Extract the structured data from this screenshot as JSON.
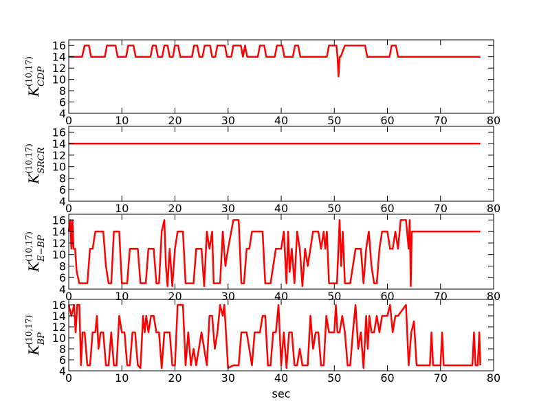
{
  "chart_data": [
    {
      "type": "line",
      "color": "#ff0000",
      "ylabel": {
        "base": "K",
        "sup": "(10,17)",
        "sub": "CDP"
      },
      "xlim": [
        0,
        80
      ],
      "ylim": [
        4,
        17
      ],
      "xticks": [
        0,
        10,
        20,
        30,
        40,
        50,
        60,
        70,
        80
      ],
      "yticks": [
        4,
        6,
        8,
        10,
        12,
        14,
        16
      ],
      "x": [
        0,
        2.5,
        3,
        3.8,
        4.2,
        6.8,
        7.2,
        8.8,
        9.2,
        10.8,
        11.2,
        12.2,
        12.6,
        15.4,
        15.8,
        16.4,
        16.8,
        17.6,
        18,
        18.6,
        19,
        19.6,
        20,
        20.6,
        21,
        23.2,
        23.6,
        24.2,
        24.6,
        25.2,
        25.6,
        26.6,
        27,
        27.6,
        28,
        29.4,
        29.8,
        30.6,
        31,
        32.4,
        32.8,
        33.2,
        33.6,
        35.6,
        36,
        36.8,
        37.2,
        38.8,
        39.2,
        40.2,
        40.6,
        42.2,
        42.6,
        43.2,
        43.6,
        48.6,
        49,
        50.4,
        50.6,
        50.8,
        51,
        51.2,
        52,
        52.4,
        55.8,
        56.2,
        60.4,
        60.8,
        61.6,
        62,
        77.5
      ],
      "values": [
        14,
        14,
        16,
        16,
        14,
        14,
        16,
        16,
        14,
        14,
        16,
        16,
        14,
        14,
        16,
        16,
        14,
        14,
        16,
        16,
        14,
        14,
        16,
        16,
        14,
        14,
        16,
        16,
        14,
        14,
        16,
        16,
        14,
        14,
        16,
        16,
        14,
        14,
        16,
        16,
        14,
        16,
        14,
        14,
        16,
        16,
        14,
        14,
        16,
        16,
        14,
        14,
        16,
        16,
        14,
        14,
        16,
        16,
        14,
        10.5,
        14,
        14,
        16,
        16,
        16,
        14,
        14,
        16,
        16,
        14,
        14
      ]
    },
    {
      "type": "line",
      "color": "#ff0000",
      "ylabel": {
        "base": "K",
        "sup": "(10,17)",
        "sub": "SRCR"
      },
      "xlim": [
        0,
        80
      ],
      "ylim": [
        4,
        17
      ],
      "xticks": [
        0,
        10,
        20,
        30,
        40,
        50,
        60,
        70,
        80
      ],
      "yticks": [
        4,
        6,
        8,
        10,
        12,
        14,
        16
      ],
      "x": [
        0,
        77.5
      ],
      "values": [
        14,
        14
      ]
    },
    {
      "type": "line",
      "color": "#ff0000",
      "ylabel": {
        "base": "K",
        "sup": "(10,17)",
        "sub": "E−BP"
      },
      "xlim": [
        0,
        80
      ],
      "ylim": [
        4,
        17
      ],
      "xticks": [
        0,
        10,
        20,
        30,
        40,
        50,
        60,
        70,
        80
      ],
      "yticks": [
        4,
        6,
        8,
        10,
        12,
        14,
        16
      ],
      "x": [
        0,
        0.3,
        0.5,
        0.7,
        0.9,
        1.2,
        1.5,
        2,
        3.5,
        4,
        4.5,
        5,
        6.5,
        7,
        7.5,
        8,
        8.5,
        9.5,
        10,
        11,
        11.5,
        13,
        13.5,
        14.5,
        15,
        16,
        16.5,
        17,
        17.5,
        18,
        18.3,
        18.6,
        19,
        19.5,
        20,
        20.5,
        21.5,
        22,
        23.5,
        24,
        25,
        25.5,
        26,
        26.5,
        27,
        27.3,
        28.5,
        29,
        29.5,
        30,
        31,
        32,
        32.5,
        33,
        33.5,
        34,
        34.5,
        36.5,
        37,
        38,
        38.5,
        39,
        40,
        40.5,
        41,
        41.3,
        41.6,
        42,
        42.5,
        43,
        43.5,
        44,
        44.5,
        45,
        45.5,
        46,
        47,
        47.5,
        48,
        48.3,
        48.6,
        49,
        50,
        50.5,
        51,
        51.3,
        51.6,
        52,
        53,
        54,
        55,
        55.5,
        56,
        56.5,
        57,
        57.5,
        58,
        58.5,
        59,
        60,
        60.5,
        61,
        61.5,
        62,
        62.5,
        63.5,
        64,
        64.2,
        64.4,
        64.6,
        77.5
      ],
      "values": [
        14,
        16,
        11,
        16,
        11,
        11,
        7,
        5,
        5,
        11,
        11,
        14,
        14,
        8,
        5,
        5,
        14,
        14,
        5,
        5,
        11,
        11,
        5,
        5,
        11,
        11,
        5,
        5,
        14,
        16,
        8,
        4.5,
        11,
        4.5,
        11,
        14,
        14,
        5,
        5,
        11,
        11,
        4.5,
        14,
        11,
        14,
        5,
        5,
        14,
        8,
        11,
        16,
        16,
        5,
        5,
        11,
        11,
        14,
        14,
        5,
        5,
        8,
        11,
        11,
        14,
        5,
        14,
        7,
        11,
        5,
        14,
        11,
        4.5,
        11,
        8,
        11,
        14,
        14,
        11,
        14,
        11,
        14,
        5,
        5,
        5,
        16,
        8,
        14,
        5,
        5,
        11,
        11,
        5,
        11,
        14,
        8,
        5,
        5,
        11,
        14,
        14,
        11,
        11,
        14,
        11,
        16,
        16,
        11,
        16,
        4.5,
        14,
        14
      ]
    },
    {
      "type": "line",
      "color": "#ff0000",
      "ylabel": {
        "base": "K",
        "sup": "(10,17)",
        "sub": "BP"
      },
      "xlabel": "sec",
      "xlim": [
        0,
        80
      ],
      "ylim": [
        4,
        17
      ],
      "xticks": [
        0,
        10,
        20,
        30,
        40,
        50,
        60,
        70,
        80
      ],
      "yticks": [
        4,
        6,
        8,
        10,
        12,
        14,
        16
      ],
      "x": [
        0,
        0.5,
        1,
        1.3,
        1.6,
        2,
        2.3,
        2.6,
        3,
        3.5,
        4,
        4.5,
        5,
        5.3,
        5.6,
        6,
        6.5,
        7,
        7.5,
        8,
        8.5,
        9,
        9.5,
        10,
        10.5,
        11,
        11.5,
        12,
        12.5,
        13,
        13.5,
        14,
        14.3,
        14.6,
        15,
        15.5,
        16,
        16.5,
        17,
        17.5,
        18,
        19,
        19.5,
        20,
        20.5,
        21.5,
        22,
        22.5,
        23,
        23.5,
        24,
        25,
        25.5,
        26,
        26.5,
        27,
        27.5,
        28,
        28.5,
        29,
        29.3,
        29.6,
        30,
        31,
        32,
        32.5,
        33.5,
        34,
        34.5,
        35,
        36,
        36.5,
        37,
        37.5,
        38,
        38.5,
        39,
        39.5,
        40,
        40.5,
        41,
        41.5,
        42,
        42.5,
        43,
        43.5,
        44,
        45,
        45.5,
        46,
        46.5,
        47,
        47.5,
        48,
        48.5,
        49,
        50,
        50.3,
        50.6,
        51,
        51.5,
        52,
        52.5,
        53,
        53.5,
        54,
        54.5,
        55,
        55.5,
        56,
        56.3,
        56.6,
        57,
        57.5,
        58,
        58.5,
        59,
        60,
        60.5,
        61,
        61.5,
        62,
        63.5,
        64,
        64.5,
        65,
        65.5,
        68,
        68.3,
        68.6,
        70,
        70.3,
        70.6,
        76,
        76.3,
        76.6,
        77,
        77.3,
        77.5
      ],
      "values": [
        16,
        14,
        16,
        11,
        16,
        16,
        5,
        11,
        11,
        5,
        5,
        11,
        11,
        14,
        8,
        11,
        11,
        5,
        5,
        11,
        5,
        5,
        14,
        11,
        11,
        5,
        5,
        11,
        11,
        5,
        4.5,
        14,
        11,
        14,
        11,
        14,
        14,
        11,
        11,
        4.5,
        11,
        11,
        5,
        5,
        16,
        16,
        5,
        11,
        5,
        8,
        5,
        11,
        8,
        5,
        14,
        14,
        8,
        11,
        16,
        14,
        16,
        11,
        4.5,
        5,
        5,
        11,
        11,
        8,
        5,
        11,
        11,
        14,
        14,
        5,
        5,
        11,
        11,
        16,
        5,
        11,
        4.5,
        11,
        11,
        5,
        5,
        8,
        5,
        5,
        14,
        8,
        11,
        11,
        5,
        5,
        14,
        11,
        11,
        16,
        11,
        11,
        14,
        11,
        5,
        5,
        11,
        16,
        8,
        11,
        4.5,
        14,
        8,
        14,
        11,
        11,
        14,
        11,
        14,
        14,
        16,
        11,
        14,
        14,
        16,
        5,
        11,
        13,
        5,
        5,
        11,
        5,
        5,
        11,
        5,
        5,
        11,
        5,
        5,
        11,
        5
      ]
    }
  ]
}
